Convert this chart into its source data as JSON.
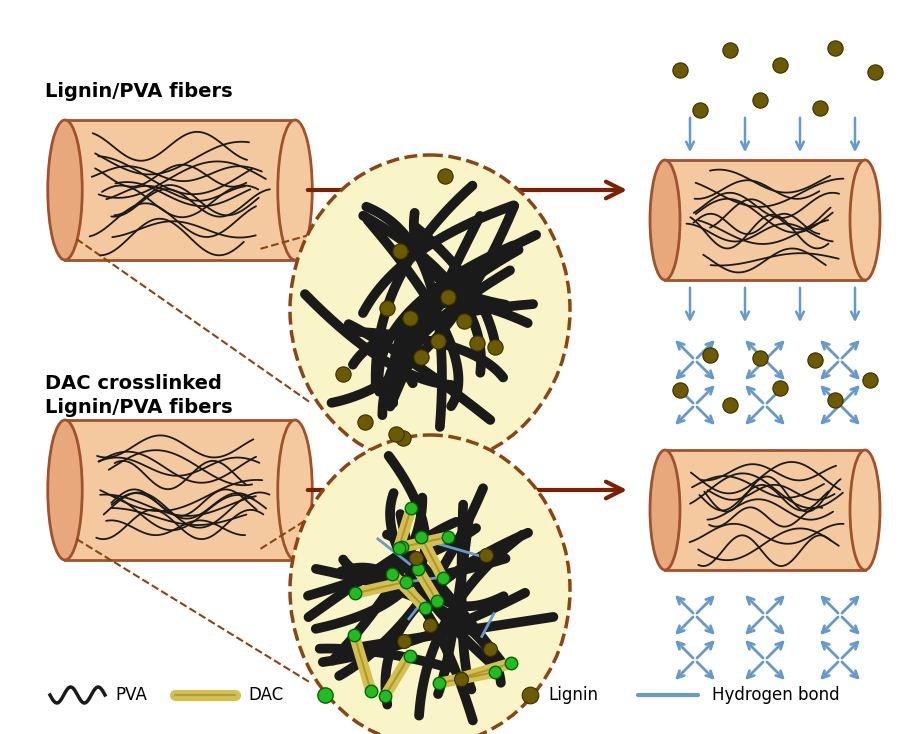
{
  "bg_color": "#ffffff",
  "fiber_fill": "#f5c9a0",
  "fiber_fill_light": "#fde8d5",
  "fiber_edge": "#a0522d",
  "fiber_cap_fill": "#e8a87c",
  "circle_fill": "#faf5c8",
  "circle_edge": "#8B4513",
  "arrow_color": "#7B2000",
  "pva_color": "#1a1a1a",
  "dac_color": "#d4c050",
  "dac_edge": "#a08820",
  "crosslink_color": "#22bb22",
  "crosslink_edge": "#006600",
  "lignin_color": "#6b5a00",
  "lignin_edge": "#3a3000",
  "hbond_color": "#6699cc",
  "label1": "Lignin/PVA fibers",
  "label2_line1": "DAC crosslinked",
  "label2_line2": "Lignin/PVA fibers",
  "title_fontsize": 14,
  "legend_fontsize": 12
}
